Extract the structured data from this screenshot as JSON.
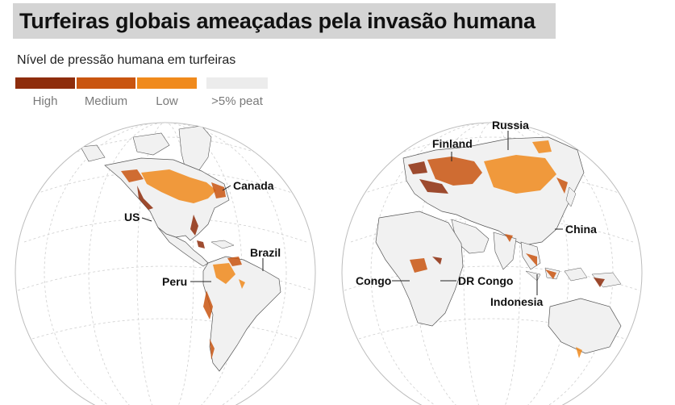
{
  "title": "Turfeiras globais ameaçadas pela invasão humana",
  "legend": {
    "title": "Nível de pressão humana em turfeiras",
    "items": [
      {
        "label": "High",
        "color": "#8e2d0c"
      },
      {
        "label": "Medium",
        "color": "#c95510"
      },
      {
        "label": "Low",
        "color": "#f08a1c"
      },
      {
        "label": ">5% peat",
        "color": "#ececec"
      }
    ]
  },
  "labels": {
    "canada": "Canada",
    "us": "US",
    "brazil": "Brazil",
    "peru": "Peru",
    "russia": "Russia",
    "finland": "Finland",
    "china": "China",
    "congo": "Congo",
    "dr_congo": "DR Congo",
    "indonesia": "Indonesia"
  }
}
